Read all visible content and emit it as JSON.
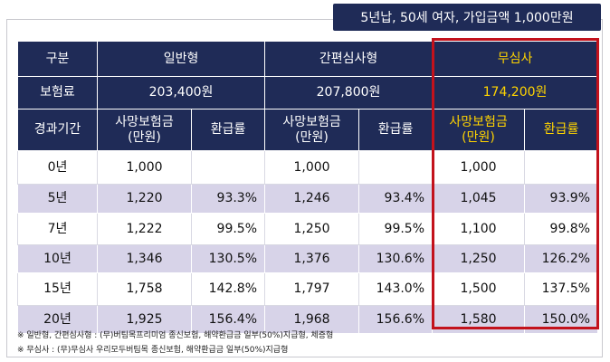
{
  "header_label": "5년납, 50세 여자, 가입금액 1,000만원",
  "table": {
    "row1": {
      "c1": "구분",
      "c2": "일반형",
      "c3": "간편심사형",
      "c4": "무심사"
    },
    "row2": {
      "c1": "보험료",
      "c2": "203,400원",
      "c3": "207,800원",
      "c4": "174,200원"
    },
    "row3": {
      "c1": "경과기간",
      "c2": "사망보험금\n(만원)",
      "c3": "환급률",
      "c4": "사망보험금\n(만원)",
      "c5": "환급률",
      "c6": "사망보험금\n(만원)",
      "c7": "환급률"
    },
    "rows": [
      {
        "period": "0년",
        "g_death": "1,000",
        "g_refund": "",
        "s_death": "1,000",
        "s_refund": "",
        "n_death": "1,000",
        "n_refund": ""
      },
      {
        "period": "5년",
        "g_death": "1,220",
        "g_refund": "93.3%",
        "s_death": "1,246",
        "s_refund": "93.4%",
        "n_death": "1,045",
        "n_refund": "93.9%"
      },
      {
        "period": "7년",
        "g_death": "1,222",
        "g_refund": "99.5%",
        "s_death": "1,250",
        "s_refund": "99.5%",
        "n_death": "1,100",
        "n_refund": "99.8%"
      },
      {
        "period": "10년",
        "g_death": "1,346",
        "g_refund": "130.5%",
        "s_death": "1,376",
        "s_refund": "130.6%",
        "n_death": "1,250",
        "n_refund": "126.2%"
      },
      {
        "period": "15년",
        "g_death": "1,758",
        "g_refund": "142.8%",
        "s_death": "1,797",
        "s_refund": "143.0%",
        "n_death": "1,500",
        "n_refund": "137.5%"
      },
      {
        "period": "20년",
        "g_death": "1,925",
        "g_refund": "156.4%",
        "s_death": "1,968",
        "s_refund": "156.6%",
        "n_death": "1,580",
        "n_refund": "150.0%"
      }
    ]
  },
  "notes": [
    "※ 일반형, 간편심사형 : (무)버팀목프리미엄 종신보험, 해약환급금 일부(50%)지급형, 체증형",
    "※ 무심사 : (무)무심사 우리모두버팀목 종신보험, 해약환급금 일부(50%)지급형"
  ],
  "colors": {
    "navy": "#1f2b57",
    "yellow": "#ffd400",
    "lavender": "#d7d3e8",
    "highlight_border": "#c3121c"
  }
}
